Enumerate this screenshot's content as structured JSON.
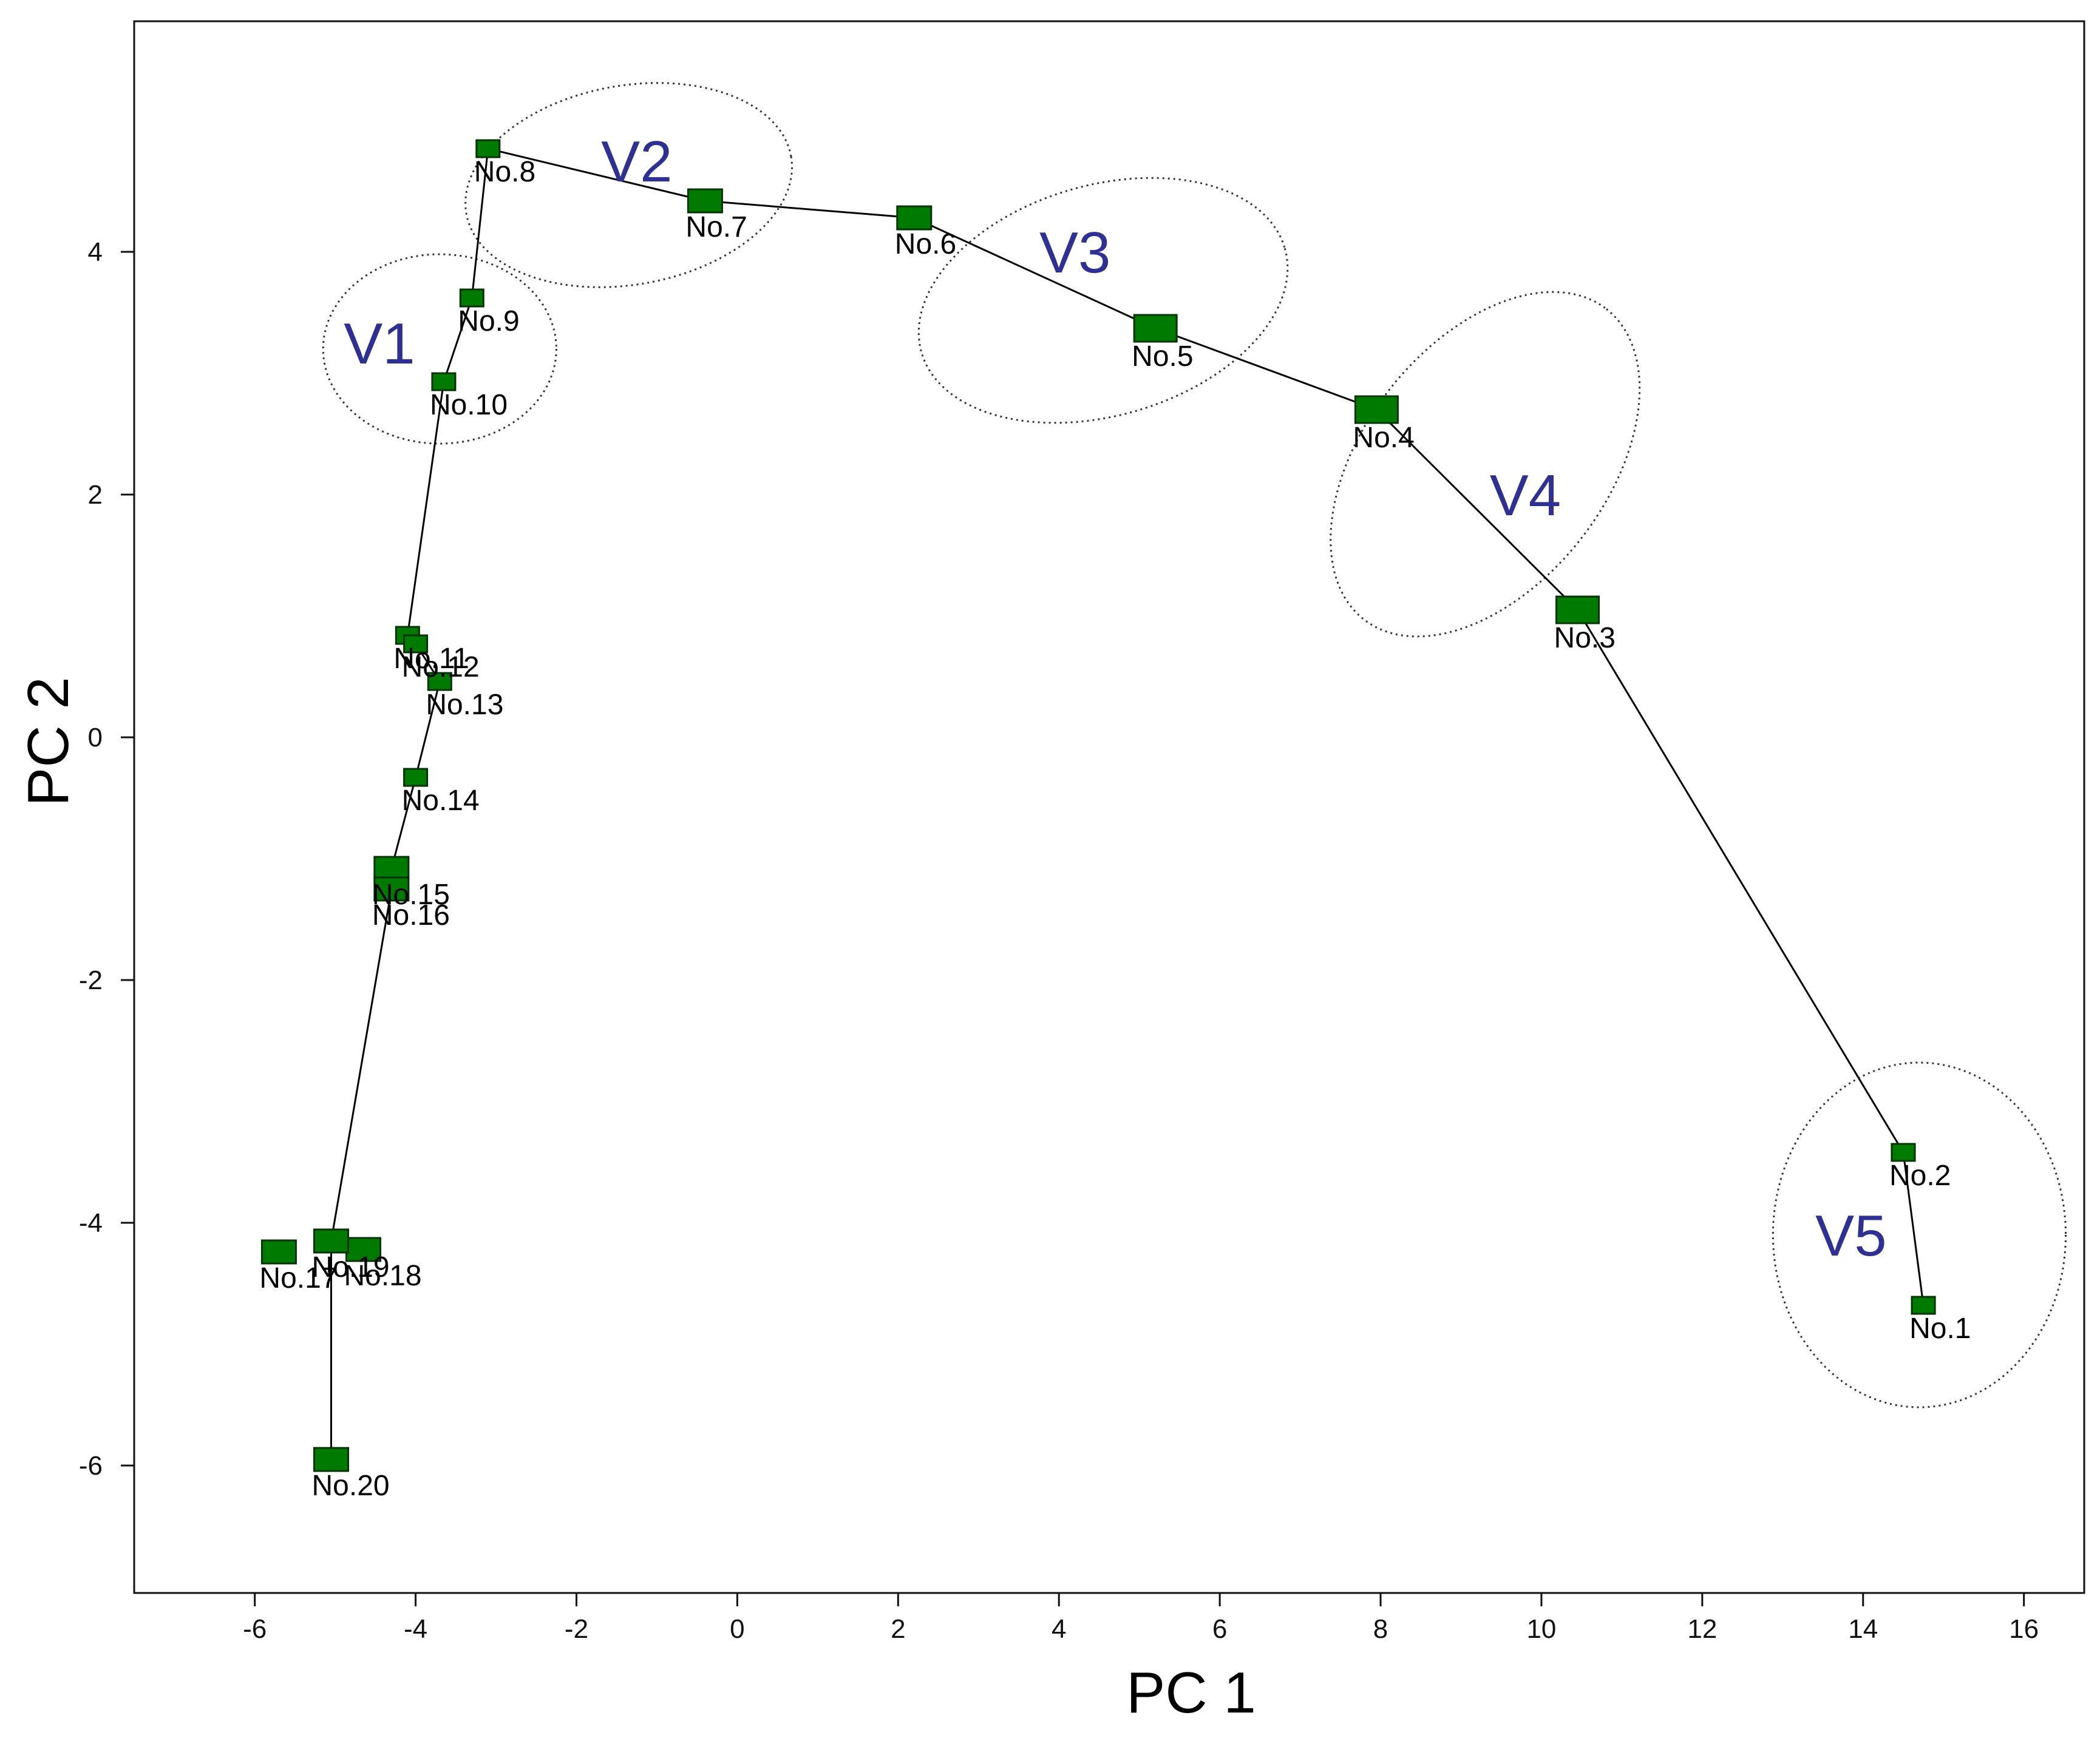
{
  "chart_data": {
    "type": "scatter",
    "title": "",
    "xlabel": "PC 1",
    "ylabel": "PC 2",
    "xlim": [
      -7.5,
      16.75
    ],
    "ylim": [
      -7.05,
      5.9
    ],
    "xticks": [
      -6,
      -4,
      -2,
      0,
      2,
      4,
      6,
      8,
      10,
      12,
      14,
      16
    ],
    "yticks": [
      -6,
      -4,
      -2,
      0,
      2,
      4
    ],
    "grid": false,
    "legend": "none",
    "marker_color": "#007a00",
    "marker_stroke": "#003300",
    "group_label_color": "#2e3192",
    "points": [
      {
        "label": "No.1",
        "x": 14.75,
        "y": -4.68,
        "size": 1
      },
      {
        "label": "No.2",
        "x": 14.5,
        "y": -3.42,
        "size": 1
      },
      {
        "label": "No.3",
        "x": 10.45,
        "y": 1.05,
        "size": 3
      },
      {
        "label": "No.4",
        "x": 7.95,
        "y": 2.7,
        "size": 3
      },
      {
        "label": "No.5",
        "x": 5.2,
        "y": 3.37,
        "size": 3
      },
      {
        "label": "No.6",
        "x": 2.2,
        "y": 4.28,
        "size": 2
      },
      {
        "label": "No.7",
        "x": -0.4,
        "y": 4.42,
        "size": 2
      },
      {
        "label": "No.8",
        "x": -3.1,
        "y": 4.85,
        "size": 1
      },
      {
        "label": "No.9",
        "x": -3.3,
        "y": 3.62,
        "size": 1
      },
      {
        "label": "No.10",
        "x": -3.65,
        "y": 2.93,
        "size": 1
      },
      {
        "label": "No.11",
        "x": -4.1,
        "y": 0.84,
        "size": 1
      },
      {
        "label": "No.12",
        "x": -4.0,
        "y": 0.77,
        "size": 1
      },
      {
        "label": "No.13",
        "x": -3.7,
        "y": 0.46,
        "size": 1
      },
      {
        "label": "No.14",
        "x": -4.0,
        "y": -0.33,
        "size": 1
      },
      {
        "label": "No.15",
        "x": -4.3,
        "y": -1.08,
        "size": 2
      },
      {
        "label": "No.16",
        "x": -4.3,
        "y": -1.25,
        "size": 2
      },
      {
        "label": "No.17",
        "x": -5.7,
        "y": -4.24,
        "size": 2
      },
      {
        "label": "No.18",
        "x": -4.65,
        "y": -4.22,
        "size": 2
      },
      {
        "label": "No.19",
        "x": -5.05,
        "y": -4.15,
        "size": 2
      },
      {
        "label": "No.20",
        "x": -5.05,
        "y": -5.95,
        "size": 2
      }
    ],
    "path_order": [
      "No.1",
      "No.2",
      "No.3",
      "No.4",
      "No.5",
      "No.6",
      "No.7",
      "No.8",
      "No.9",
      "No.10",
      "No.11",
      "No.12",
      "No.13",
      "No.14",
      "No.15",
      "No.16",
      "No.19",
      "No.20"
    ],
    "groups": [
      {
        "name": "V1",
        "label_x": -4.45,
        "label_y": 3.25,
        "ellipse": {
          "cx": -3.7,
          "cy": 3.2,
          "rx": 1.45,
          "ry": 0.78,
          "angle": 0
        }
      },
      {
        "name": "V2",
        "label_x": -1.25,
        "label_y": 4.75,
        "ellipse": {
          "cx": -1.35,
          "cy": 4.55,
          "rx": 2.05,
          "ry": 0.82,
          "angle": -10
        }
      },
      {
        "name": "V3",
        "label_x": 4.2,
        "label_y": 4.0,
        "ellipse": {
          "cx": 4.55,
          "cy": 3.6,
          "rx": 2.35,
          "ry": 0.95,
          "angle": -16
        }
      },
      {
        "name": "V4",
        "label_x": 9.8,
        "label_y": 2.0,
        "ellipse": {
          "cx": 9.3,
          "cy": 2.25,
          "rx": 2.45,
          "ry": 1.0,
          "angle": -52
        }
      },
      {
        "name": "V5",
        "label_x": 13.85,
        "label_y": -4.1,
        "ellipse": {
          "cx": 14.7,
          "cy": -4.1,
          "rx": 1.82,
          "ry": 1.42,
          "angle": 0
        }
      }
    ]
  }
}
